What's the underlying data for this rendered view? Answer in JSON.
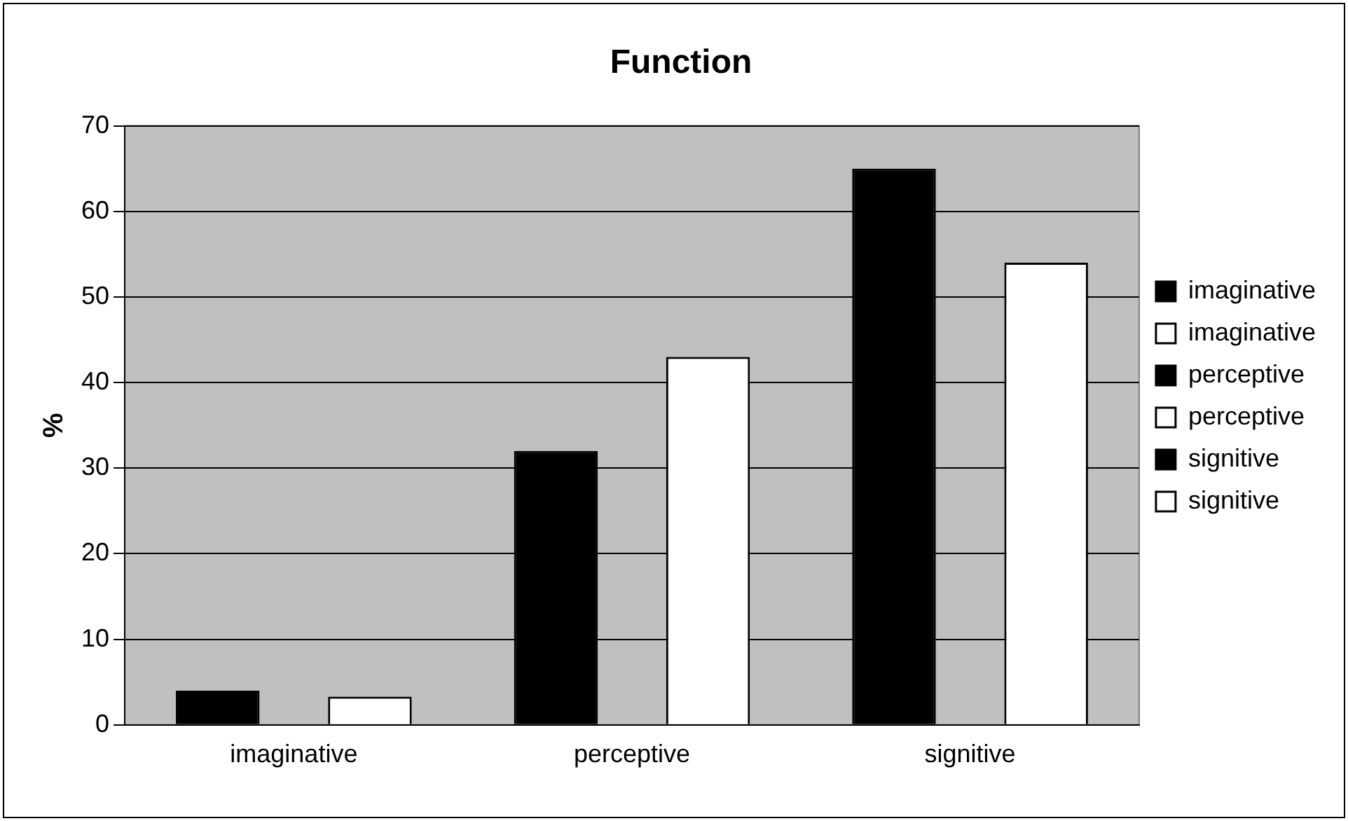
{
  "chart_data": {
    "type": "bar",
    "title": "Function",
    "ylabel": "%",
    "categories": [
      "imaginative",
      "perceptive",
      "signitive"
    ],
    "series": [
      {
        "name": "imaginative",
        "color": "#000000",
        "values": [
          4,
          null,
          null
        ]
      },
      {
        "name": "imaginative",
        "color": "#ffffff",
        "values": [
          3.3,
          null,
          null
        ]
      },
      {
        "name": "perceptive",
        "color": "#000000",
        "values": [
          null,
          32,
          null
        ]
      },
      {
        "name": "perceptive",
        "color": "#ffffff",
        "values": [
          null,
          43,
          null
        ]
      },
      {
        "name": "signitive",
        "color": "#000000",
        "values": [
          null,
          null,
          65
        ]
      },
      {
        "name": "signitive",
        "color": "#ffffff",
        "values": [
          null,
          null,
          54
        ]
      }
    ],
    "ylim": [
      0,
      70
    ],
    "yticks": [
      0,
      10,
      20,
      30,
      40,
      50,
      60,
      70
    ],
    "grid": "y",
    "legend": "right"
  }
}
